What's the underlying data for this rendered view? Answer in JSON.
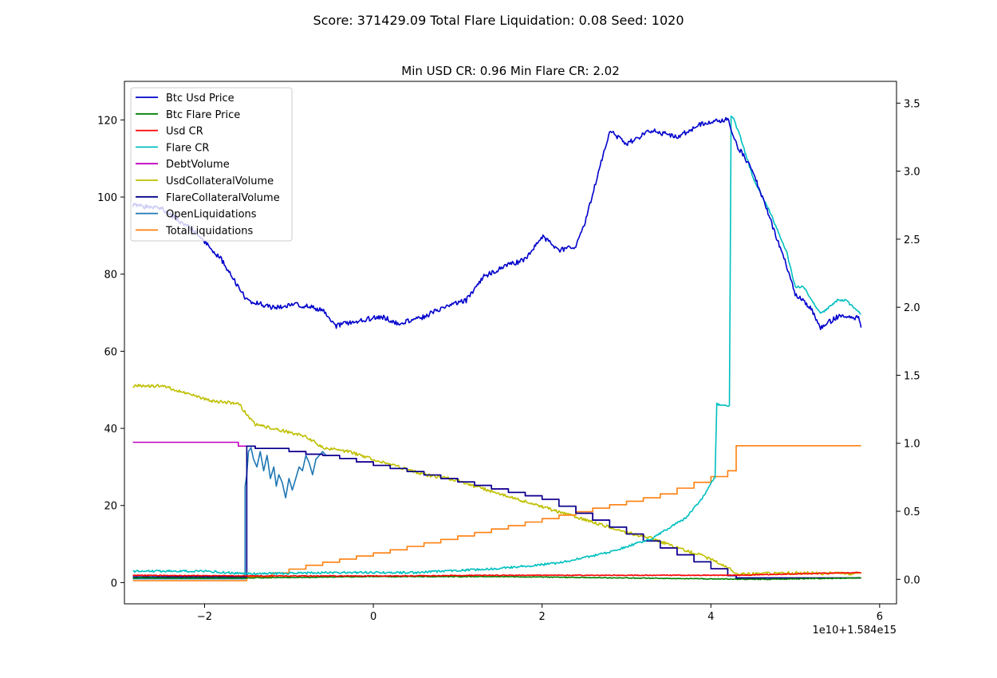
{
  "figure": {
    "suptitle": "Score: 371429.09 Total Flare Liquidation: 0.08 Seed: 1020"
  },
  "chart_data": {
    "type": "line",
    "title": "Min USD CR: 0.96 Min Flare CR: 2.02",
    "xlabel": "",
    "ylabel": "",
    "x_offset_text": "1e10+1.584e15",
    "xlim": [
      -2.95,
      6.2
    ],
    "x_ticks": [
      -2,
      0,
      2,
      4,
      6
    ],
    "x_tick_labels": [
      "−2",
      "0",
      "2",
      "4",
      "6"
    ],
    "ylim_left": [
      -5.5,
      130
    ],
    "y_left_ticks": [
      0,
      20,
      40,
      60,
      80,
      100,
      120
    ],
    "y_left_tick_labels": [
      "0",
      "20",
      "40",
      "60",
      "80",
      "100",
      "120"
    ],
    "ylim_right": [
      -0.18,
      3.66
    ],
    "y_right_ticks": [
      0.0,
      0.5,
      1.0,
      1.5,
      2.0,
      2.5,
      3.0,
      3.5
    ],
    "y_right_tick_labels": [
      "0.0",
      "0.5",
      "1.0",
      "1.5",
      "2.0",
      "2.5",
      "3.0",
      "3.5"
    ],
    "grid": false,
    "legend_position": "top-left",
    "series": [
      {
        "name": "Btc Usd Price",
        "axis": "right",
        "color": "#0000cc",
        "noise": 0.018,
        "x": [
          -2.85,
          -2.5,
          -2.1,
          -1.8,
          -1.5,
          -1.2,
          -0.9,
          -0.6,
          -0.45,
          -0.2,
          0.1,
          0.3,
          0.6,
          0.9,
          1.1,
          1.3,
          1.55,
          1.8,
          2.0,
          2.2,
          2.4,
          2.5,
          2.8,
          3.0,
          3.3,
          3.6,
          3.9,
          4.2,
          4.3,
          4.5,
          4.7,
          4.9,
          5.0,
          5.2,
          5.3,
          5.5,
          5.75,
          5.78
        ],
        "y": [
          2.75,
          2.72,
          2.55,
          2.35,
          2.05,
          2.0,
          2.02,
          1.98,
          1.86,
          1.9,
          1.93,
          1.88,
          1.93,
          2.02,
          2.05,
          2.22,
          2.3,
          2.35,
          2.52,
          2.42,
          2.45,
          2.6,
          3.3,
          3.2,
          3.3,
          3.25,
          3.35,
          3.38,
          3.2,
          3.0,
          2.65,
          2.3,
          2.1,
          1.98,
          1.85,
          1.93,
          1.92,
          1.85
        ]
      },
      {
        "name": "Btc Flare Price",
        "axis": "right",
        "color": "#008000",
        "noise": 0.003,
        "x": [
          -2.85,
          -1.5,
          0,
          1.5,
          3,
          4.5,
          5.78
        ],
        "y": [
          0.01,
          0.01,
          0.02,
          0.02,
          0.01,
          0.0,
          0.01
        ]
      },
      {
        "name": "Usd CR",
        "axis": "right",
        "color": "#ff0000",
        "noise": 0.003,
        "x": [
          -2.85,
          -1.5,
          0,
          1.5,
          3,
          4.3,
          5.0,
          5.78
        ],
        "y": [
          0.03,
          0.025,
          0.025,
          0.03,
          0.03,
          0.03,
          0.04,
          0.05
        ]
      },
      {
        "name": "Flare CR",
        "axis": "right",
        "color": "#00bfbf",
        "noise": 0.008,
        "x": [
          -2.85,
          -2.0,
          -1.5,
          -0.5,
          0.5,
          1.5,
          2.2,
          2.8,
          3.3,
          3.7,
          3.9,
          4.05,
          4.07,
          4.1,
          4.22,
          4.24,
          4.26,
          4.35,
          4.5,
          4.7,
          4.9,
          5.0,
          5.1,
          5.3,
          5.5,
          5.6,
          5.78
        ],
        "y": [
          0.06,
          0.06,
          0.04,
          0.05,
          0.05,
          0.08,
          0.12,
          0.2,
          0.3,
          0.45,
          0.6,
          0.75,
          1.3,
          1.28,
          1.28,
          3.4,
          3.4,
          3.25,
          2.95,
          2.7,
          2.4,
          2.15,
          2.15,
          1.95,
          2.05,
          2.05,
          1.95
        ]
      },
      {
        "name": "DebtVolume",
        "axis": "left",
        "color": "#bf00bf",
        "noise": 0.0,
        "step": true,
        "x": [
          -2.85,
          -1.6,
          -1.6,
          -1.4,
          -1.4,
          -1.0,
          -1.0,
          -0.8,
          -0.8,
          -0.6,
          -0.6,
          -0.4,
          -0.4,
          -0.2,
          -0.2,
          0.0,
          0.0,
          0.2,
          0.2,
          0.4,
          0.4,
          0.6,
          0.6,
          0.8,
          0.8,
          1.0,
          1.0,
          1.2,
          1.2,
          1.4,
          1.4,
          1.6,
          1.6,
          1.8,
          1.8,
          2.0,
          2.0,
          2.2,
          2.2,
          2.4,
          2.4,
          2.6,
          2.6,
          2.8,
          2.8,
          3.0,
          3.0,
          3.2,
          3.2,
          3.4,
          3.4,
          3.6,
          3.6,
          3.8,
          3.8,
          4.0,
          4.0,
          4.2,
          4.2,
          4.3,
          4.3,
          5.78
        ],
        "y": [
          36.4,
          36.4,
          35.4,
          35.4,
          34.8,
          34.8,
          34.0,
          34.0,
          33.3,
          33.3,
          33.0,
          33.0,
          32.2,
          32.2,
          31.3,
          31.3,
          30.4,
          30.4,
          29.6,
          29.6,
          28.8,
          28.8,
          27.9,
          27.9,
          27.0,
          27.0,
          26.1,
          26.1,
          25.2,
          25.2,
          24.3,
          24.3,
          23.4,
          23.4,
          22.5,
          22.5,
          21.6,
          21.6,
          19.8,
          19.8,
          18.0,
          18.0,
          16.2,
          16.2,
          14.4,
          14.4,
          12.6,
          12.6,
          10.8,
          10.8,
          9.0,
          9.0,
          7.2,
          7.2,
          5.4,
          5.4,
          3.6,
          3.6,
          1.8,
          1.8,
          1.2,
          1.2
        ]
      },
      {
        "name": "UsdCollateralVolume",
        "axis": "left",
        "color": "#bfbf00",
        "noise": 0.4,
        "x": [
          -2.85,
          -2.5,
          -2.2,
          -1.9,
          -1.6,
          -1.4,
          -1.2,
          -1.0,
          -0.8,
          -0.6,
          -0.3,
          0.0,
          0.3,
          0.6,
          0.9,
          1.2,
          1.5,
          1.8,
          2.1,
          2.4,
          2.7,
          3.0,
          3.3,
          3.6,
          3.9,
          4.1,
          4.2,
          4.3,
          4.5,
          5.0,
          5.78
        ],
        "y": [
          51,
          51,
          49,
          47,
          46.5,
          41,
          40,
          39,
          38,
          35,
          34,
          32,
          30,
          28,
          27,
          25,
          23,
          21,
          19,
          17,
          15,
          13,
          11.5,
          9,
          7,
          5,
          4,
          2.2,
          2.3,
          2.5,
          2.3
        ]
      },
      {
        "name": "FlareCollateralVolume",
        "axis": "left",
        "color": "#00008b",
        "noise": 0.0,
        "step": true,
        "x": [
          -2.85,
          -1.5,
          -1.5,
          -1.4,
          -1.4,
          -1.0,
          -1.0,
          -0.8,
          -0.8,
          -0.6,
          -0.6,
          -0.4,
          -0.4,
          -0.2,
          -0.2,
          0.0,
          0.0,
          0.2,
          0.2,
          0.4,
          0.4,
          0.6,
          0.6,
          0.8,
          0.8,
          1.0,
          1.0,
          1.2,
          1.2,
          1.4,
          1.4,
          1.6,
          1.6,
          1.8,
          1.8,
          2.0,
          2.0,
          2.2,
          2.2,
          2.4,
          2.4,
          2.6,
          2.6,
          2.8,
          2.8,
          3.0,
          3.0,
          3.2,
          3.2,
          3.4,
          3.4,
          3.6,
          3.6,
          3.8,
          3.8,
          4.0,
          4.0,
          4.2,
          4.2,
          4.3,
          4.3,
          5.78
        ],
        "y": [
          1.5,
          1.5,
          35.4,
          35.4,
          34.8,
          34.8,
          34.0,
          34.0,
          33.3,
          33.3,
          33.0,
          33.0,
          32.2,
          32.2,
          31.3,
          31.3,
          30.4,
          30.4,
          29.6,
          29.6,
          28.8,
          28.8,
          27.9,
          27.9,
          27.0,
          27.0,
          26.1,
          26.1,
          25.2,
          25.2,
          24.3,
          24.3,
          23.4,
          23.4,
          22.5,
          22.5,
          21.6,
          21.6,
          19.8,
          19.8,
          18.0,
          18.0,
          16.2,
          16.2,
          14.4,
          14.4,
          12.6,
          12.6,
          10.8,
          10.8,
          9.0,
          9.0,
          7.2,
          7.2,
          5.4,
          5.4,
          3.6,
          3.6,
          1.8,
          1.8,
          1.2,
          1.2
        ]
      },
      {
        "name": "OpenLiquidations",
        "axis": "left",
        "color": "#1f77b4",
        "noise": 0.0,
        "x": [
          -2.85,
          -1.52,
          -1.52,
          -1.5,
          -1.48,
          -1.45,
          -1.42,
          -1.38,
          -1.34,
          -1.3,
          -1.26,
          -1.22,
          -1.18,
          -1.15,
          -1.12,
          -1.08,
          -1.04,
          -1.0,
          -0.96,
          -0.92,
          -0.88,
          -0.84,
          -0.8,
          -0.76,
          -0.72,
          -0.68,
          -0.64,
          -0.6,
          -0.56,
          -0.52
        ],
        "y": [
          1,
          1,
          25,
          28,
          34,
          35,
          32,
          30,
          34,
          29,
          33,
          27,
          30,
          25,
          28,
          26,
          22,
          27,
          24,
          27,
          30,
          29,
          33,
          31,
          28,
          32,
          33,
          34,
          33,
          33
        ]
      },
      {
        "name": "TotalLiquidations",
        "axis": "left",
        "color": "#ff7f0e",
        "noise": 0.0,
        "step": true,
        "x": [
          -2.85,
          -1.5,
          -1.5,
          -1.2,
          -1.2,
          -1.0,
          -1.0,
          -0.8,
          -0.8,
          -0.6,
          -0.6,
          -0.4,
          -0.4,
          -0.2,
          -0.2,
          0.0,
          0.0,
          0.2,
          0.2,
          0.4,
          0.4,
          0.6,
          0.6,
          0.8,
          0.8,
          1.0,
          1.0,
          1.2,
          1.2,
          1.4,
          1.4,
          1.6,
          1.6,
          1.8,
          1.8,
          2.0,
          2.0,
          2.2,
          2.2,
          2.4,
          2.4,
          2.6,
          2.6,
          2.8,
          2.8,
          3.0,
          3.0,
          3.2,
          3.2,
          3.4,
          3.4,
          3.6,
          3.6,
          3.8,
          3.8,
          4.0,
          4.0,
          4.2,
          4.2,
          4.3,
          4.3,
          5.78
        ],
        "y": [
          0.5,
          0.5,
          1.5,
          1.5,
          2.5,
          2.5,
          3.5,
          3.5,
          4.5,
          4.5,
          5.3,
          5.3,
          6.1,
          6.1,
          6.9,
          6.9,
          7.7,
          7.7,
          8.5,
          8.5,
          9.4,
          9.4,
          10.3,
          10.3,
          11.2,
          11.2,
          12.1,
          12.1,
          13.0,
          13.0,
          13.9,
          13.9,
          14.8,
          14.8,
          15.7,
          15.7,
          16.6,
          16.6,
          17.5,
          17.5,
          18.4,
          18.4,
          19.3,
          19.3,
          20.2,
          20.2,
          21.1,
          21.1,
          22.0,
          22.0,
          23.0,
          23.0,
          24.5,
          24.5,
          26.0,
          26.0,
          27.5,
          27.5,
          29.0,
          29.0,
          35.5,
          35.5
        ]
      }
    ]
  }
}
